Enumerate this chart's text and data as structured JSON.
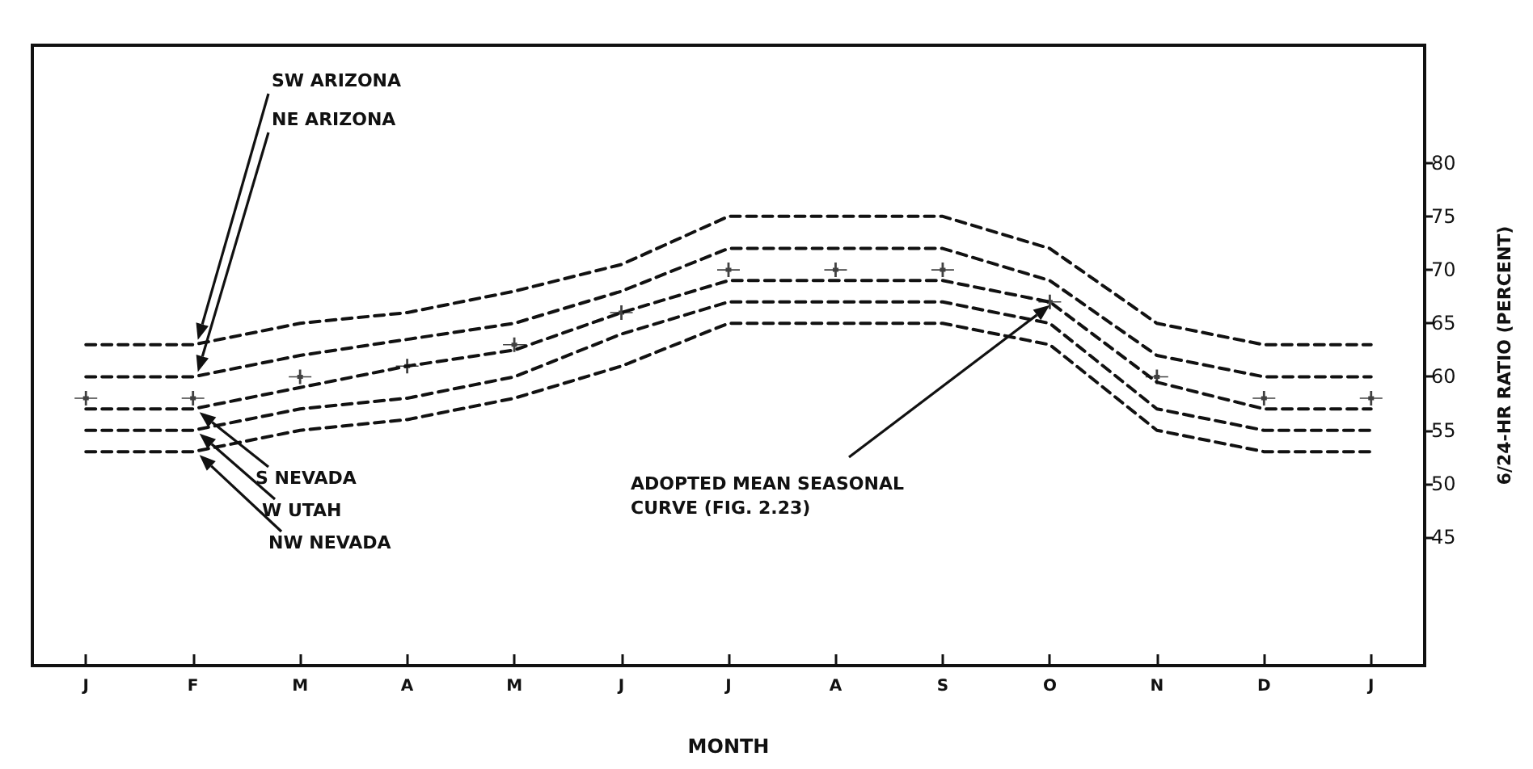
{
  "chart_data": {
    "type": "line",
    "xlabel": "MONTH",
    "ylabel": "6/24-HR RATIO (PERCENT)",
    "categories": [
      "J",
      "F",
      "M",
      "A",
      "M",
      "J",
      "J",
      "A",
      "S",
      "O",
      "N",
      "D",
      "J"
    ],
    "ylim": [
      33,
      91
    ],
    "yticks": [
      45,
      50,
      55,
      60,
      65,
      70,
      75,
      80
    ],
    "grid": false,
    "legend": false,
    "line_style": "dashed",
    "marker": "none",
    "series": [
      {
        "name": "SW ARIZONA",
        "color": "#111111",
        "values": [
          63,
          63,
          65,
          66,
          68,
          70.5,
          75,
          75,
          75,
          72,
          65,
          63,
          63
        ]
      },
      {
        "name": "NE ARIZONA",
        "color": "#111111",
        "values": [
          60,
          60,
          62,
          63.5,
          65,
          68,
          72,
          72,
          72,
          69,
          62,
          60,
          60
        ]
      },
      {
        "name": "S NEVADA",
        "color": "#111111",
        "values": [
          57,
          57,
          59,
          61,
          62.5,
          66,
          69,
          69,
          69,
          67,
          59.5,
          57,
          57
        ]
      },
      {
        "name": "W UTAH",
        "color": "#111111",
        "values": [
          55,
          55,
          57,
          58,
          60,
          64,
          67,
          67,
          67,
          65,
          57,
          55,
          55
        ]
      },
      {
        "name": "NW NEVADA",
        "color": "#111111",
        "values": [
          53,
          53,
          55,
          56,
          58,
          61,
          65,
          65,
          65,
          63,
          55,
          53,
          53
        ]
      },
      {
        "name": "ADOPTED MEAN SEASONAL CURVE (FIG. 2.23)",
        "type": "scatter",
        "marker": "cross",
        "color": "#111111",
        "values": [
          58,
          58,
          60,
          61,
          63,
          66,
          70,
          70,
          70,
          67,
          60,
          58,
          58
        ]
      }
    ]
  }
}
